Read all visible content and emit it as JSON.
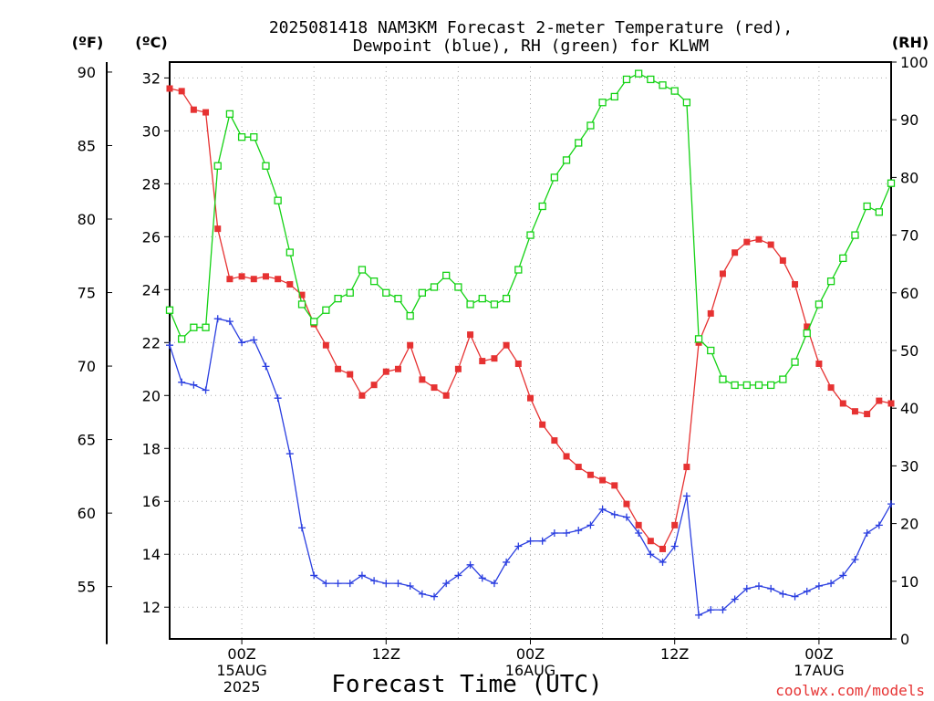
{
  "chart_data": {
    "type": "line",
    "title": "2025081418 NAM3KM Forecast 2-meter Temperature (red),",
    "title2": "Dewpoint (blue), RH (green) for KLWM",
    "xlabel": "Forecast Time (UTC)",
    "credit": "coolwx.com/models",
    "x_start": "2025-08-14 18Z",
    "x_range_hours": [
      0,
      60
    ],
    "left_units": {
      "f": "(ºF)",
      "c": "(ºC)"
    },
    "right_units": "(RH)",
    "celsius_axis": {
      "range": [
        10.8,
        32.6
      ],
      "ticks": [
        12,
        14,
        16,
        18,
        20,
        22,
        24,
        26,
        28,
        30,
        32
      ]
    },
    "fahrenheit_axis": {
      "ticks": [
        55,
        60,
        65,
        70,
        75,
        80,
        85,
        90
      ]
    },
    "rh_axis": {
      "range": [
        0,
        100
      ],
      "ticks": [
        0,
        10,
        20,
        30,
        40,
        50,
        60,
        70,
        80,
        90,
        100
      ]
    },
    "x_ticks": [
      {
        "hour": 6,
        "lines": [
          "00Z",
          "15AUG",
          "2025"
        ]
      },
      {
        "hour": 18,
        "lines": [
          "12Z"
        ]
      },
      {
        "hour": 30,
        "lines": [
          "00Z",
          "16AUG"
        ]
      },
      {
        "hour": 42,
        "lines": [
          "12Z"
        ]
      },
      {
        "hour": 54,
        "lines": [
          "00Z",
          "17AUG"
        ]
      }
    ],
    "grid": true,
    "series": [
      {
        "name": "Temperature",
        "color": "#e63232",
        "marker": "square-filled",
        "axis": "celsius",
        "hours": [
          0,
          1,
          2,
          3,
          4,
          5,
          6,
          7,
          8,
          9,
          10,
          11,
          12,
          13,
          14,
          15,
          16,
          17,
          18,
          19,
          20,
          21,
          22,
          23,
          24,
          25,
          26,
          27,
          28,
          29,
          30,
          31,
          32,
          33,
          34,
          35,
          36,
          37,
          38,
          39,
          40,
          41,
          42,
          43,
          44,
          45,
          46,
          47,
          48,
          49,
          50,
          51,
          52,
          53,
          54,
          55,
          56,
          57,
          58,
          59,
          60
        ],
        "values": [
          31.6,
          31.5,
          30.8,
          30.7,
          26.3,
          24.4,
          24.5,
          24.4,
          24.5,
          24.4,
          24.2,
          23.8,
          22.7,
          21.9,
          21.0,
          20.8,
          20.0,
          20.4,
          20.9,
          21.0,
          21.9,
          20.6,
          20.3,
          20.0,
          21.0,
          22.3,
          21.3,
          21.4,
          21.9,
          21.2,
          19.9,
          18.9,
          18.3,
          17.7,
          17.3,
          17.0,
          16.8,
          16.6,
          15.9,
          15.1,
          14.5,
          14.2,
          15.1,
          17.3,
          22.0,
          23.1,
          24.6,
          25.4,
          25.8,
          25.9,
          25.7,
          25.1,
          24.2,
          22.6,
          21.2,
          20.3,
          19.7,
          19.4,
          19.3,
          19.8,
          19.7
        ]
      },
      {
        "name": "Dewpoint",
        "color": "#2a3ee0",
        "marker": "plus",
        "axis": "celsius",
        "hours": [
          0,
          1,
          2,
          3,
          4,
          5,
          6,
          7,
          8,
          9,
          10,
          11,
          12,
          13,
          14,
          15,
          16,
          17,
          18,
          19,
          20,
          21,
          22,
          23,
          24,
          25,
          26,
          27,
          28,
          29,
          30,
          31,
          32,
          33,
          34,
          35,
          36,
          37,
          38,
          39,
          40,
          41,
          42,
          43,
          44,
          45,
          46,
          47,
          48,
          49,
          50,
          51,
          52,
          53,
          54,
          55,
          56,
          57,
          58,
          59,
          60
        ],
        "values": [
          21.9,
          20.5,
          20.4,
          20.2,
          22.9,
          22.8,
          22.0,
          22.1,
          21.1,
          19.9,
          17.8,
          15.0,
          13.2,
          12.9,
          12.9,
          12.9,
          13.2,
          13.0,
          12.9,
          12.9,
          12.8,
          12.5,
          12.4,
          12.9,
          13.2,
          13.6,
          13.1,
          12.9,
          13.7,
          14.3,
          14.5,
          14.5,
          14.8,
          14.8,
          14.9,
          15.1,
          15.7,
          15.5,
          15.4,
          14.8,
          14.0,
          13.7,
          14.3,
          16.2,
          11.7,
          11.9,
          11.9,
          12.3,
          12.7,
          12.8,
          12.7,
          12.5,
          12.4,
          12.6,
          12.8,
          12.9,
          13.2,
          13.8,
          14.8,
          15.1,
          15.9
        ]
      },
      {
        "name": "RH",
        "color": "#14d214",
        "marker": "square-open",
        "axis": "rh",
        "hours": [
          0,
          1,
          2,
          3,
          4,
          5,
          6,
          7,
          8,
          9,
          10,
          11,
          12,
          13,
          14,
          15,
          16,
          17,
          18,
          19,
          20,
          21,
          22,
          23,
          24,
          25,
          26,
          27,
          28,
          29,
          30,
          31,
          32,
          33,
          34,
          35,
          36,
          37,
          38,
          39,
          40,
          41,
          42,
          43,
          44,
          45,
          46,
          47,
          48,
          49,
          50,
          51,
          52,
          53,
          54,
          55,
          56,
          57,
          58,
          59,
          60
        ],
        "values": [
          57,
          52,
          54,
          54,
          82,
          91,
          87,
          87,
          82,
          76,
          67,
          58,
          55,
          57,
          59,
          60,
          64,
          62,
          60,
          59,
          56,
          60,
          61,
          63,
          61,
          58,
          59,
          58,
          59,
          64,
          70,
          75,
          80,
          83,
          86,
          89,
          93,
          94,
          97,
          98,
          97,
          96,
          95,
          93,
          52,
          50,
          45,
          44,
          44,
          44,
          44,
          45,
          48,
          53,
          58,
          62,
          66,
          70,
          75,
          74,
          79
        ]
      }
    ]
  }
}
